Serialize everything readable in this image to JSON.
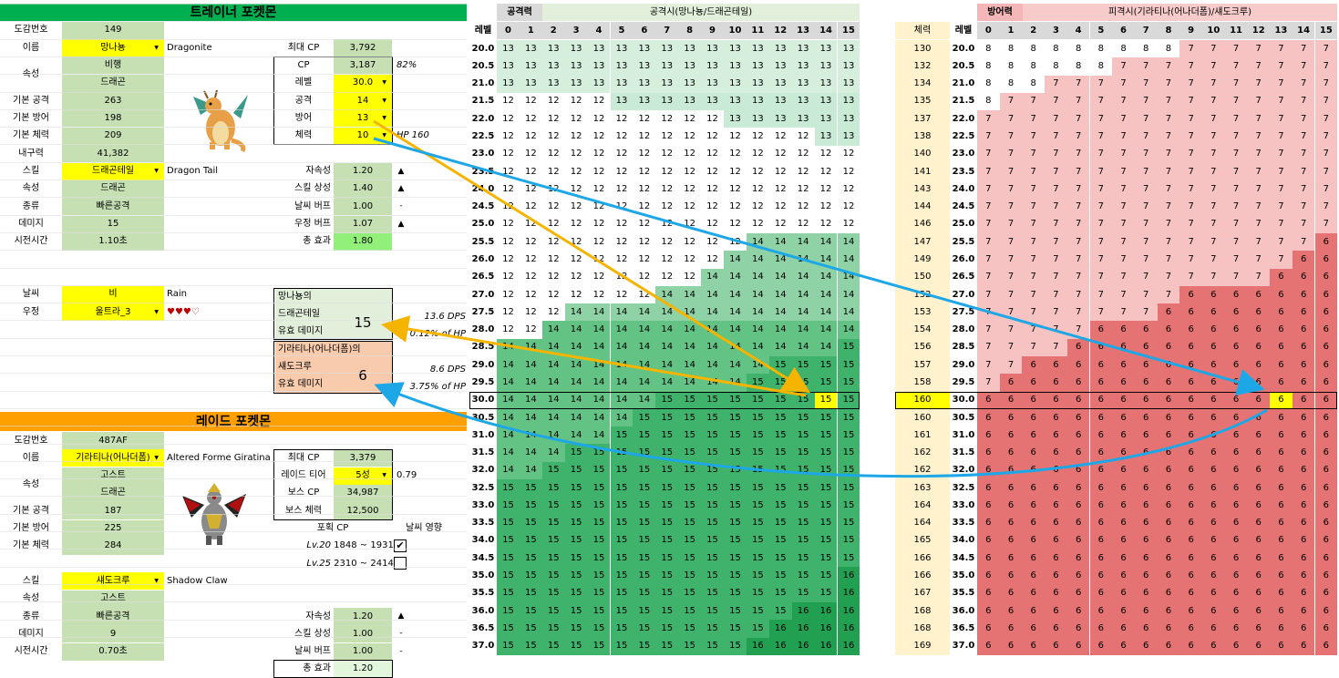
{
  "trainer": {
    "title": "트레이너 포켓몬",
    "dex_label": "도감번호",
    "dex": "149",
    "name_label": "이름",
    "name": "망나뇽",
    "name_en": "Dragonite",
    "type_label": "속성",
    "type1": "비행",
    "type2": "드래곤",
    "atk_label": "기본 공격",
    "atk": "263",
    "def_label": "기본 방어",
    "def": "198",
    "hp_label": "기본 체력",
    "hp": "209",
    "dur_label": "내구력",
    "dur": "41,382",
    "skill_label": "스킬",
    "skill": "드래곤테일",
    "skill_en": "Dragon Tail",
    "skill_type_label": "속성",
    "skill_type": "드래곤",
    "kind_label": "종류",
    "kind": "빠른공격",
    "dmg_label": "데미지",
    "dmg": "15",
    "time_label": "시전시간",
    "time": "1.10초",
    "weather_label": "날씨",
    "weather": "비",
    "weather_en": "Rain",
    "friend_label": "우정",
    "friend": "울트라_3",
    "hearts": "♥♥♥♡",
    "maxcp_label": "최대 CP",
    "maxcp": "3,792",
    "cp_label": "CP",
    "cp": "3,187",
    "cp_pct": "82%",
    "level_label": "레벨",
    "level": "30.0",
    "iv_atk_label": "공격",
    "iv_atk": "14",
    "iv_def_label": "방어",
    "iv_def": "13",
    "iv_hp_label": "체력",
    "iv_hp": "10",
    "hp_note": "HP 160",
    "stab_label": "자속성",
    "stab": "1.20",
    "stab_m": "▲",
    "eff_label": "스킬 상성",
    "eff": "1.40",
    "eff_m": "▲",
    "wb_label": "날씨 버프",
    "wb": "1.00",
    "wb_m": "-",
    "fb_label": "우정 버프",
    "fb": "1.07",
    "fb_m": "▲",
    "tot_label": "총 효과",
    "tot": "1.80"
  },
  "summary": {
    "a1": "망나뇽의",
    "a2": "드래곤테일",
    "a3": "유효 데미지",
    "a_val": "15",
    "a_dps": "13.6 DPS",
    "a_hp": "0.12% of HP",
    "b1": "기라티나(어나더폼)의",
    "b2": "섀도크루",
    "b3": "유효 데미지",
    "b_val": "6",
    "b_dps": "8.6 DPS",
    "b_hp": "3.75% of HP"
  },
  "raid": {
    "title": "레이드 포켓몬",
    "dex_label": "도감번호",
    "dex": "487AF",
    "name_label": "이름",
    "name": "기라티나(어나더폼)",
    "name_en": "Altered Forme Giratina",
    "type_label": "속성",
    "type1": "고스트",
    "type2": "드래곤",
    "atk_label": "기본 공격",
    "atk": "187",
    "def_label": "기본 방어",
    "def": "225",
    "hp_label": "기본 체력",
    "hp": "284",
    "skill_label": "스킬",
    "skill": "섀도크루",
    "skill_en": "Shadow Claw",
    "skill_type_label": "속성",
    "skill_type": "고스트",
    "kind_label": "종류",
    "kind": "빠른공격",
    "dmg_label": "데미지",
    "dmg": "9",
    "time_label": "시전시간",
    "time": "0.70초",
    "maxcp_label": "최대 CP",
    "maxcp": "3,379",
    "tier_label": "레이드 티어",
    "tier": "5성",
    "tier_val": "0.79",
    "bcp_label": "보스 CP",
    "bcp": "34,987",
    "bhp_label": "보스 체력",
    "bhp": "12,500",
    "catch_label": "포획 CP",
    "weather_eff_label": "날씨 영향",
    "lv20": "Lv.20",
    "lv20_range": "1848 ~ 1931",
    "lv25": "Lv.25",
    "lv25_range": "2310 ~ 2414",
    "stab_label": "자속성",
    "stab": "1.20",
    "stab_m": "▲",
    "eff_label": "스킬 상성",
    "eff": "1.00",
    "eff_m": "-",
    "wb_label": "날씨 버프",
    "wb": "1.00",
    "wb_m": "-",
    "tot_label": "총 효과",
    "tot": "1.20"
  },
  "atk_table": {
    "stat_header": "공격력",
    "title": "공격시(망나뇽/드래곤테일)",
    "level_header": "레벨",
    "cols": [
      "0",
      "1",
      "2",
      "3",
      "4",
      "5",
      "6",
      "7",
      "8",
      "9",
      "10",
      "11",
      "12",
      "13",
      "14",
      "15"
    ],
    "levels": [
      "20.0",
      "20.5",
      "21.0",
      "21.5",
      "22.0",
      "22.5",
      "23.0",
      "23.5",
      "24.0",
      "24.5",
      "25.0",
      "25.5",
      "26.0",
      "26.5",
      "27.0",
      "27.5",
      "28.0",
      "28.5",
      "29.0",
      "29.5",
      "30.0",
      "30.5",
      "31.0",
      "31.5",
      "32.0",
      "32.5",
      "33.0",
      "33.5",
      "34.0",
      "34.5",
      "35.0",
      "35.5",
      "36.0",
      "36.5",
      "37.0"
    ],
    "first13": [
      0,
      0,
      0,
      5,
      10,
      14,
      16,
      18,
      19,
      19,
      19,
      20,
      20,
      20,
      21,
      21,
      21,
      21,
      21,
      21,
      21,
      21,
      21,
      21,
      21,
      21,
      21,
      21,
      21,
      21,
      21,
      21,
      21,
      21,
      21
    ],
    "first14": [
      99,
      99,
      99,
      99,
      99,
      99,
      99,
      99,
      99,
      99,
      99,
      11,
      10,
      9,
      7,
      3,
      2,
      0,
      0,
      0,
      0,
      0,
      0,
      0,
      0,
      0,
      0,
      0,
      0,
      0,
      0,
      0,
      0,
      0,
      0
    ],
    "first15": [
      99,
      99,
      99,
      99,
      99,
      99,
      99,
      99,
      99,
      99,
      99,
      99,
      99,
      99,
      99,
      99,
      99,
      15,
      12,
      11,
      7,
      6,
      5,
      3,
      2,
      0,
      0,
      0,
      0,
      0,
      0,
      0,
      0,
      0,
      0
    ],
    "first16": [
      99,
      99,
      99,
      99,
      99,
      99,
      99,
      99,
      99,
      99,
      99,
      99,
      99,
      99,
      99,
      99,
      99,
      99,
      99,
      99,
      99,
      99,
      99,
      99,
      99,
      99,
      99,
      99,
      99,
      99,
      15,
      15,
      13,
      12,
      11
    ],
    "highlight": {
      "row": "30.0",
      "col": "14"
    }
  },
  "def_table": {
    "hp_header": "체력",
    "stat_header": "방어력",
    "title": "피격시(기라티나(어나더폼)/섀도크루)",
    "level_header": "레벨",
    "cols": [
      "0",
      "1",
      "2",
      "3",
      "4",
      "5",
      "6",
      "7",
      "8",
      "9",
      "10",
      "11",
      "12",
      "13",
      "14",
      "15"
    ],
    "hp": [
      "130",
      "132",
      "134",
      "135",
      "137",
      "138",
      "140",
      "141",
      "143",
      "144",
      "146",
      "147",
      "149",
      "150",
      "152",
      "153",
      "154",
      "156",
      "157",
      "158",
      "160",
      "160",
      "161",
      "162",
      "162",
      "163",
      "164",
      "164",
      "165",
      "166",
      "166",
      "167",
      "168",
      "168",
      "169"
    ],
    "first7": [
      9,
      6,
      3,
      1,
      0,
      0,
      0,
      0,
      0,
      0,
      0,
      0,
      0,
      0,
      0,
      0,
      0,
      0,
      0,
      0,
      0,
      0,
      0,
      0,
      0,
      0,
      0,
      0,
      0,
      0,
      0,
      0,
      0,
      0,
      0
    ],
    "first6": [
      99,
      99,
      99,
      99,
      99,
      99,
      99,
      99,
      99,
      99,
      99,
      15,
      14,
      13,
      9,
      8,
      5,
      4,
      2,
      1,
      0,
      0,
      0,
      0,
      0,
      0,
      0,
      0,
      0,
      0,
      0,
      0,
      0,
      0,
      0
    ],
    "highlight": {
      "row": "30.0",
      "col": "13"
    }
  },
  "colors": {
    "green_header": "#00b050",
    "orange_header": "#ffa000",
    "arrow_orange": "#f5b400",
    "arrow_blue": "#1ea7e6"
  }
}
